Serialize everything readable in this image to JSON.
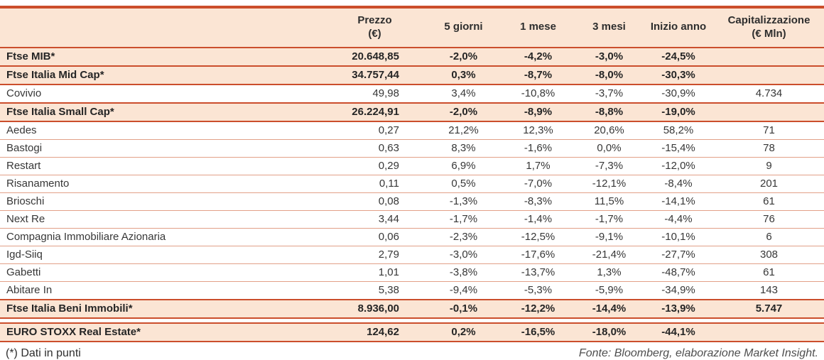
{
  "colors": {
    "accent": "#cb4e2c",
    "peach": "#fbe5d4",
    "thin-line": "#e2a088",
    "text": "#373737"
  },
  "table": {
    "header": {
      "name": "",
      "prezzo": "Prezzo\n(€)",
      "g5": "5 giorni",
      "m1": "1 mese",
      "m3": "3 mesi",
      "ytd": "Inizio anno",
      "cap": "Capitalizzazione\n(€ Mln)"
    },
    "rows": [
      {
        "type": "index",
        "name": "Ftse MIB*",
        "prezzo": "20.648,85",
        "g5": "-2,0%",
        "m1": "-4,2%",
        "m3": "-3,0%",
        "ytd": "-24,5%",
        "cap": ""
      },
      {
        "type": "index",
        "name": "Ftse Italia Mid Cap*",
        "prezzo": "34.757,44",
        "g5": "0,3%",
        "m1": "-8,7%",
        "m3": "-8,0%",
        "ytd": "-30,3%",
        "cap": ""
      },
      {
        "type": "company",
        "name": "Covivio",
        "prezzo": "49,98",
        "g5": "3,4%",
        "m1": "-10,8%",
        "m3": "-3,7%",
        "ytd": "-30,9%",
        "cap": "4.734"
      },
      {
        "type": "index",
        "name": "Ftse Italia Small Cap*",
        "prezzo": "26.224,91",
        "g5": "-2,0%",
        "m1": "-8,9%",
        "m3": "-8,8%",
        "ytd": "-19,0%",
        "cap": ""
      },
      {
        "type": "company",
        "name": "Aedes",
        "prezzo": "0,27",
        "g5": "21,2%",
        "m1": "12,3%",
        "m3": "20,6%",
        "ytd": "58,2%",
        "cap": "71"
      },
      {
        "type": "company",
        "name": "Bastogi",
        "prezzo": "0,63",
        "g5": "8,3%",
        "m1": "-1,6%",
        "m3": "0,0%",
        "ytd": "-15,4%",
        "cap": "78"
      },
      {
        "type": "company",
        "name": "Restart",
        "prezzo": "0,29",
        "g5": "6,9%",
        "m1": "1,7%",
        "m3": "-7,3%",
        "ytd": "-12,0%",
        "cap": "9"
      },
      {
        "type": "company",
        "name": "Risanamento",
        "prezzo": "0,11",
        "g5": "0,5%",
        "m1": "-7,0%",
        "m3": "-12,1%",
        "ytd": "-8,4%",
        "cap": "201"
      },
      {
        "type": "company",
        "name": "Brioschi",
        "prezzo": "0,08",
        "g5": "-1,3%",
        "m1": "-8,3%",
        "m3": "11,5%",
        "ytd": "-14,1%",
        "cap": "61"
      },
      {
        "type": "company",
        "name": "Next Re",
        "prezzo": "3,44",
        "g5": "-1,7%",
        "m1": "-1,4%",
        "m3": "-1,7%",
        "ytd": "-4,4%",
        "cap": "76"
      },
      {
        "type": "company",
        "name": "Compagnia Immobiliare Azionaria",
        "prezzo": "0,06",
        "g5": "-2,3%",
        "m1": "-12,5%",
        "m3": "-9,1%",
        "ytd": "-10,1%",
        "cap": "6"
      },
      {
        "type": "company",
        "name": "Igd-Siiq",
        "prezzo": "2,79",
        "g5": "-3,0%",
        "m1": "-17,6%",
        "m3": "-21,4%",
        "ytd": "-27,7%",
        "cap": "308"
      },
      {
        "type": "company",
        "name": "Gabetti",
        "prezzo": "1,01",
        "g5": "-3,8%",
        "m1": "-13,7%",
        "m3": "1,3%",
        "ytd": "-48,7%",
        "cap": "61"
      },
      {
        "type": "company",
        "name": "Abitare In",
        "prezzo": "5,38",
        "g5": "-9,4%",
        "m1": "-5,3%",
        "m3": "-5,9%",
        "ytd": "-34,9%",
        "cap": "143"
      },
      {
        "type": "index",
        "name": "Ftse Italia Beni Immobili*",
        "prezzo": "8.936,00",
        "g5": "-0,1%",
        "m1": "-12,2%",
        "m3": "-14,4%",
        "ytd": "-13,9%",
        "cap": "5.747"
      },
      {
        "type": "index",
        "name": "EURO STOXX Real Estate*",
        "prezzo": "124,62",
        "g5": "0,2%",
        "m1": "-16,5%",
        "m3": "-18,0%",
        "ytd": "-44,1%",
        "cap": "",
        "gap_before": true
      }
    ]
  },
  "footer": {
    "footnote": "(*) Dati in punti",
    "source": "Fonte: Bloomberg, elaborazione Market Insight."
  }
}
